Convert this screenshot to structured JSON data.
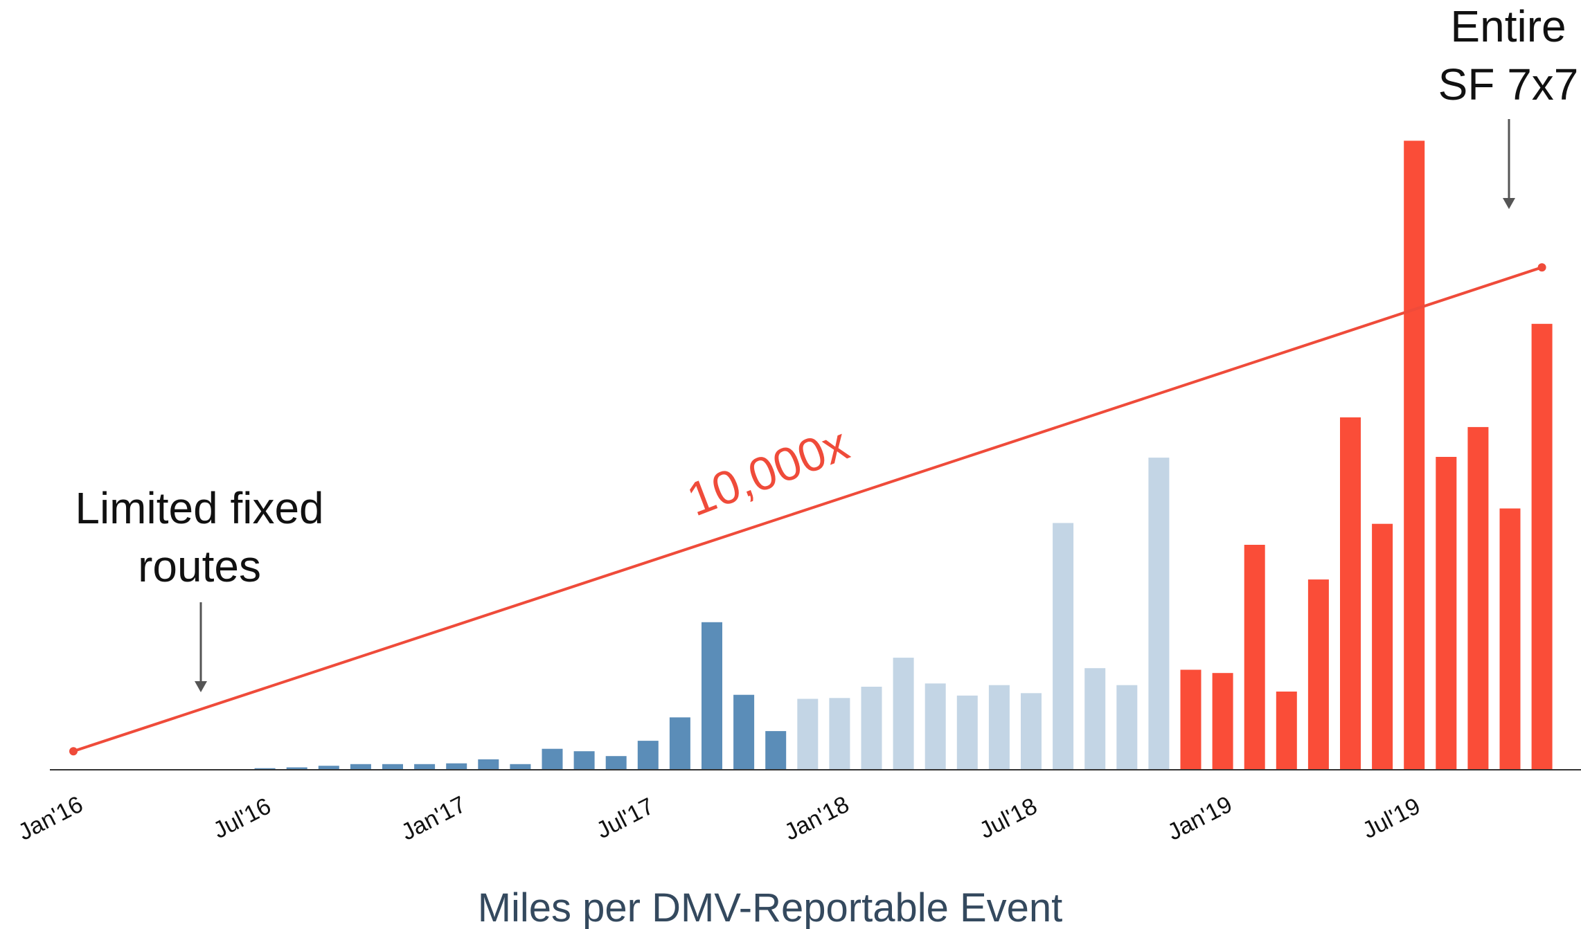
{
  "chart_data": {
    "type": "bar",
    "xlabel": "Miles per DMV-Reportable Event",
    "ylabel": "",
    "tick_labels": [
      "Jan'16",
      "Jul'16",
      "Jan'17",
      "Jul'17",
      "Jan'18",
      "Jul'18",
      "Jan'19",
      "Jul'19"
    ],
    "y_scale": "relative bar height (axis unlabeled)",
    "grid": false,
    "colors": {
      "dark_blue": "#5b8db8",
      "light_blue": "#c3d5e5",
      "red": "#fa4d38",
      "trend": "#ef4b3a",
      "axis": "#333333"
    },
    "bars": [
      {
        "month": "Jul'16",
        "value": 0.2,
        "color": "dark_blue"
      },
      {
        "month": "Aug'16",
        "value": 0.3,
        "color": "dark_blue"
      },
      {
        "month": "Sep'16",
        "value": 0.5,
        "color": "dark_blue"
      },
      {
        "month": "Oct'16",
        "value": 0.7,
        "color": "dark_blue"
      },
      {
        "month": "Nov'16",
        "value": 0.7,
        "color": "dark_blue"
      },
      {
        "month": "Dec'16",
        "value": 0.7,
        "color": "dark_blue"
      },
      {
        "month": "Jan'17",
        "value": 0.8,
        "color": "dark_blue"
      },
      {
        "month": "Feb'17",
        "value": 1.3,
        "color": "dark_blue"
      },
      {
        "month": "Mar'17",
        "value": 0.7,
        "color": "dark_blue"
      },
      {
        "month": "Apr'17",
        "value": 2.6,
        "color": "dark_blue"
      },
      {
        "month": "May'17",
        "value": 2.3,
        "color": "dark_blue"
      },
      {
        "month": "Jun'17",
        "value": 1.7,
        "color": "dark_blue"
      },
      {
        "month": "Jul'17",
        "value": 3.6,
        "color": "dark_blue"
      },
      {
        "month": "Aug'17",
        "value": 6.5,
        "color": "dark_blue"
      },
      {
        "month": "Sep'17",
        "value": 18.3,
        "color": "dark_blue"
      },
      {
        "month": "Oct'17",
        "value": 9.3,
        "color": "dark_blue"
      },
      {
        "month": "Nov'17",
        "value": 4.8,
        "color": "dark_blue"
      },
      {
        "month": "Dec'17",
        "value": 8.8,
        "color": "light_blue"
      },
      {
        "month": "Jan'18",
        "value": 8.9,
        "color": "light_blue"
      },
      {
        "month": "Feb'18",
        "value": 10.3,
        "color": "light_blue"
      },
      {
        "month": "Mar'18",
        "value": 13.9,
        "color": "light_blue"
      },
      {
        "month": "Apr'18",
        "value": 10.7,
        "color": "light_blue"
      },
      {
        "month": "May'18",
        "value": 9.2,
        "color": "light_blue"
      },
      {
        "month": "Jun'18",
        "value": 10.5,
        "color": "light_blue"
      },
      {
        "month": "Jul'18",
        "value": 9.5,
        "color": "light_blue"
      },
      {
        "month": "Aug'18",
        "value": 30.6,
        "color": "light_blue"
      },
      {
        "month": "Sep'18",
        "value": 12.6,
        "color": "light_blue"
      },
      {
        "month": "Oct'18",
        "value": 10.5,
        "color": "light_blue"
      },
      {
        "month": "Nov'18",
        "value": 38.7,
        "color": "light_blue"
      },
      {
        "month": "Dec'18",
        "value": 12.4,
        "color": "red"
      },
      {
        "month": "Jan'19",
        "value": 12.0,
        "color": "red"
      },
      {
        "month": "Feb'19",
        "value": 27.9,
        "color": "red"
      },
      {
        "month": "Mar'19",
        "value": 9.7,
        "color": "red"
      },
      {
        "month": "Apr'19",
        "value": 23.6,
        "color": "red"
      },
      {
        "month": "May'19",
        "value": 43.7,
        "color": "red"
      },
      {
        "month": "Jun'19",
        "value": 30.5,
        "color": "red"
      },
      {
        "month": "Jul'19",
        "value": 78.0,
        "color": "red"
      },
      {
        "month": "Aug'19",
        "value": 38.8,
        "color": "red"
      },
      {
        "month": "Sep'19",
        "value": 42.5,
        "color": "red"
      },
      {
        "month": "Oct'19",
        "value": 32.4,
        "color": "red"
      },
      {
        "month": "Nov'19",
        "value": 55.3,
        "color": "red"
      }
    ],
    "trend_line": {
      "label": "10,000x",
      "from_month": "Jan'16",
      "to_month": "Nov'19",
      "start": 2.3,
      "end": 62.3
    },
    "annotations": [
      {
        "lines": [
          "Limited fixed",
          "routes"
        ],
        "points_to": "Jul'16"
      },
      {
        "lines": [
          "Entire",
          "SF 7x7"
        ],
        "points_to": "Sep'19"
      }
    ]
  }
}
